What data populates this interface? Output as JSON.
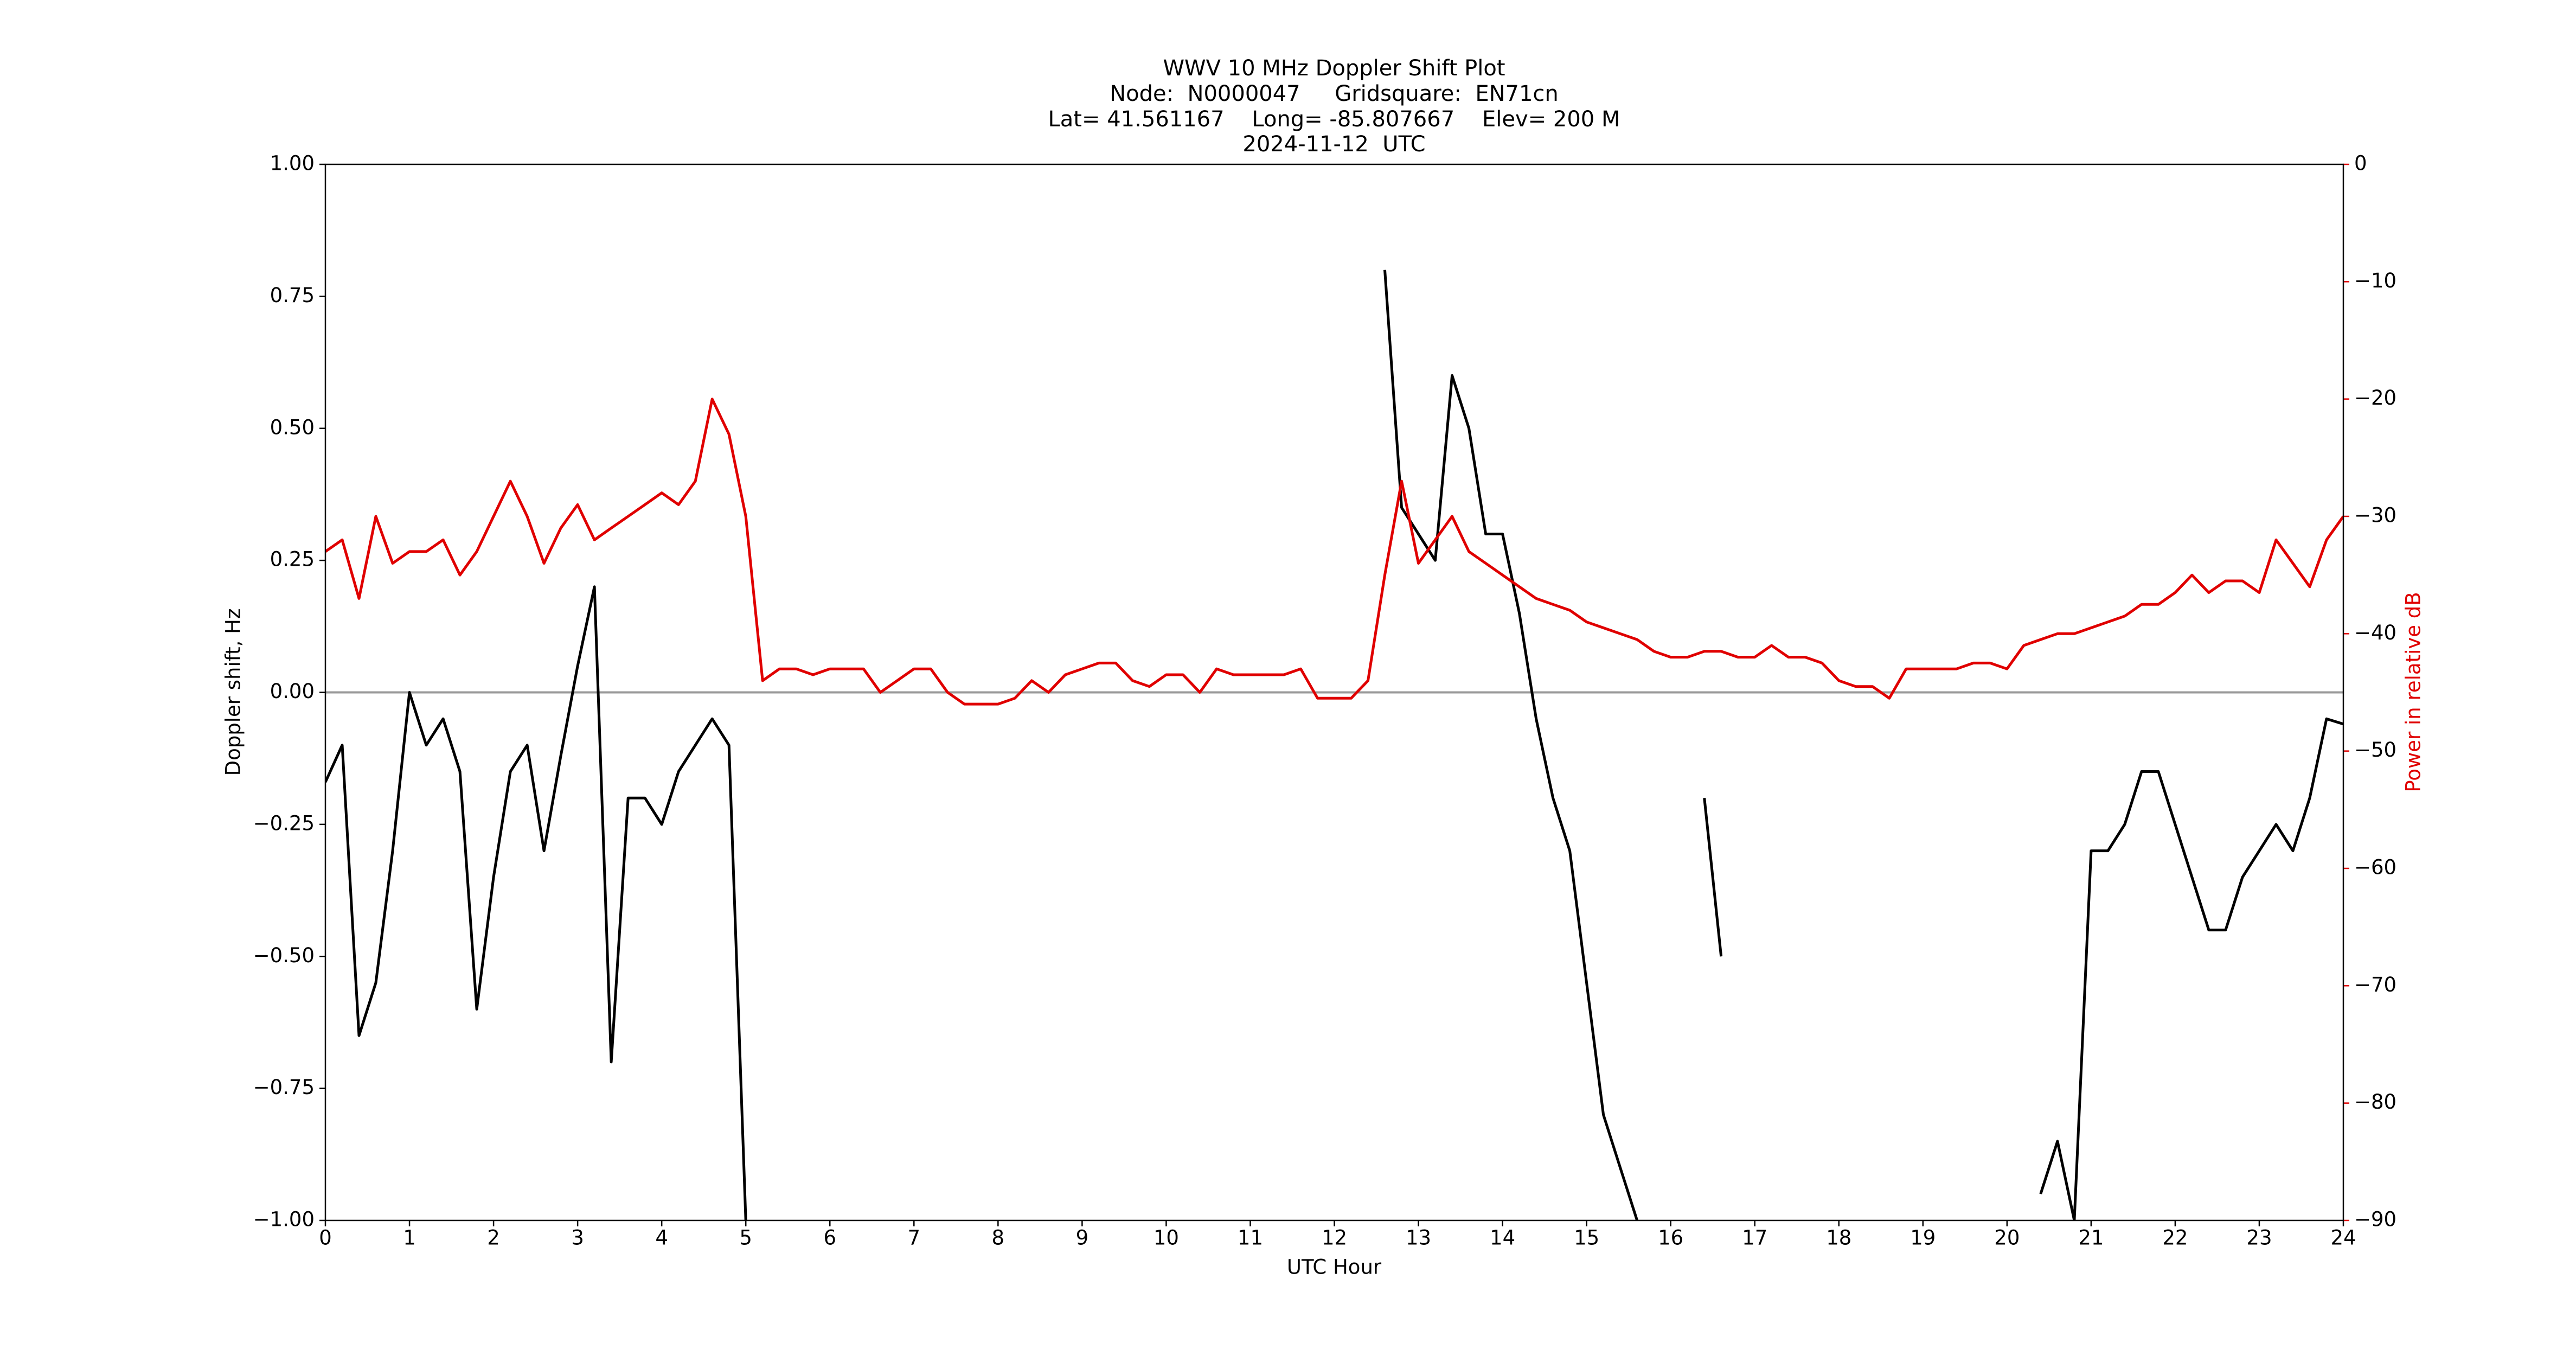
{
  "chart_data": {
    "type": "line",
    "title": [
      "WWV 10 MHz Doppler Shift Plot",
      "Node:  N0000047     Gridsquare:  EN71cn",
      "Lat= 41.561167    Long= -85.807667    Elev= 200 M",
      "2024-11-12  UTC"
    ],
    "x_label": "UTC Hour",
    "y_label": "Doppler shift, Hz",
    "y2_label": "Power in relative dB",
    "x": [
      0,
      0.2,
      0.4,
      0.6,
      0.8,
      1,
      1.2,
      1.4,
      1.6,
      1.8,
      2,
      2.2,
      2.4,
      2.6,
      2.8,
      3,
      3.2,
      3.4,
      3.6,
      3.8,
      4,
      4.2,
      4.4,
      4.6,
      4.8,
      5,
      5.2,
      5.4,
      5.6,
      5.8,
      6,
      6.2,
      6.4,
      6.6,
      6.8,
      7,
      7.2,
      7.4,
      7.6,
      7.8,
      8,
      8.2,
      8.4,
      8.6,
      8.8,
      9,
      9.2,
      9.4,
      9.6,
      9.8,
      10,
      10.2,
      10.4,
      10.6,
      10.8,
      11,
      11.2,
      11.4,
      11.6,
      11.8,
      12,
      12.2,
      12.4,
      12.6,
      12.8,
      13,
      13.2,
      13.4,
      13.6,
      13.8,
      14,
      14.2,
      14.4,
      14.6,
      14.8,
      15,
      15.2,
      15.4,
      15.6,
      15.8,
      16,
      16.2,
      16.4,
      16.6,
      16.8,
      17,
      17.2,
      17.4,
      17.6,
      17.8,
      18,
      18.2,
      18.4,
      18.6,
      18.8,
      19,
      19.2,
      19.4,
      19.6,
      19.8,
      20,
      20.2,
      20.4,
      20.6,
      20.8,
      21,
      21.2,
      21.4,
      21.6,
      21.8,
      22,
      22.2,
      22.4,
      22.6,
      22.8,
      23,
      23.2,
      23.4,
      23.6,
      23.8,
      24
    ],
    "series": [
      {
        "name": "Doppler shift",
        "color": "#000000",
        "axis": "y",
        "values": [
          -0.17,
          -0.1,
          -0.65,
          -0.55,
          -0.3,
          0.0,
          -0.1,
          -0.05,
          -0.15,
          -0.6,
          -0.35,
          -0.15,
          -0.1,
          -0.3,
          -0.12,
          0.05,
          0.2,
          -0.7,
          -0.2,
          -0.2,
          -0.25,
          -0.15,
          -0.1,
          -0.05,
          -0.1,
          -1.0,
          null,
          null,
          null,
          null,
          null,
          null,
          null,
          null,
          null,
          null,
          null,
          null,
          null,
          null,
          null,
          null,
          null,
          null,
          null,
          null,
          null,
          null,
          null,
          null,
          null,
          null,
          null,
          null,
          null,
          null,
          null,
          null,
          null,
          null,
          null,
          null,
          null,
          0.8,
          0.35,
          0.3,
          0.25,
          0.6,
          0.5,
          0.3,
          0.3,
          0.15,
          -0.05,
          -0.2,
          -0.3,
          -0.55,
          -0.8,
          -0.9,
          -1.0,
          null,
          null,
          null,
          -0.2,
          -0.5,
          null,
          null,
          null,
          null,
          null,
          null,
          null,
          null,
          null,
          null,
          null,
          null,
          null,
          null,
          null,
          null,
          null,
          null,
          -0.95,
          -0.85,
          -1.0,
          -0.3,
          -0.3,
          -0.25,
          -0.15,
          -0.15,
          -0.25,
          -0.35,
          -0.45,
          -0.45,
          -0.35,
          -0.3,
          -0.25,
          -0.3,
          -0.2,
          -0.05,
          -0.06
        ]
      },
      {
        "name": "Power",
        "color": "#e00000",
        "axis": "y2",
        "values": [
          -33,
          -32,
          -37,
          -30,
          -34,
          -33,
          -33,
          -32,
          -35,
          -33,
          -30,
          -27,
          -30,
          -34,
          -31,
          -29,
          -32,
          -31,
          -30,
          -29,
          -28,
          -29,
          -27,
          -20,
          -23,
          -30,
          -44,
          -43,
          -43,
          -43.5,
          -43,
          -43,
          -43,
          -45,
          -44,
          -43,
          -43,
          -45,
          -46,
          -46,
          -46,
          -45.5,
          -44,
          -45,
          -43.5,
          -43,
          -42.5,
          -42.5,
          -44,
          -44.5,
          -43.5,
          -43.5,
          -45,
          -43,
          -43.5,
          -43.5,
          -43.5,
          -43.5,
          -43,
          -45.5,
          -45.5,
          -45.5,
          -44,
          -35,
          -27,
          -34,
          -32,
          -30,
          -33,
          -34,
          -35,
          -36,
          -37,
          -37.5,
          -38,
          -39,
          -39.5,
          -40,
          -40.5,
          -41.5,
          -42,
          -42,
          -41.5,
          -41.5,
          -42,
          -42,
          -41,
          -42,
          -42,
          -42.5,
          -44,
          -44.5,
          -44.5,
          -45.5,
          -43,
          -43,
          -43,
          -43,
          -42.5,
          -42.5,
          -43,
          -41,
          -40.5,
          -40,
          -40,
          -39.5,
          -39,
          -38.5,
          -37.5,
          -37.5,
          -36.5,
          -35,
          -36.5,
          -35.5,
          -35.5,
          -36.5,
          -32,
          -34,
          -36,
          -32,
          -30
        ]
      }
    ],
    "xlim": [
      0,
      24
    ],
    "xticks": [
      0,
      1,
      2,
      3,
      4,
      5,
      6,
      7,
      8,
      9,
      10,
      11,
      12,
      13,
      14,
      15,
      16,
      17,
      18,
      19,
      20,
      21,
      22,
      23,
      24
    ],
    "ylim": [
      -1,
      1
    ],
    "yticks": [
      {
        "value": -1,
        "label": "−1.00"
      },
      {
        "value": -0.75,
        "label": "−0.75"
      },
      {
        "value": -0.5,
        "label": "−0.50"
      },
      {
        "value": -0.25,
        "label": "−0.25"
      },
      {
        "value": 0,
        "label": "0.00"
      },
      {
        "value": 0.25,
        "label": "0.25"
      },
      {
        "value": 0.5,
        "label": "0.50"
      },
      {
        "value": 0.75,
        "label": "0.75"
      },
      {
        "value": 1,
        "label": "1.00"
      }
    ],
    "y2lim": [
      -90,
      0
    ],
    "y2ticks": [
      {
        "value": -90,
        "label": "−90"
      },
      {
        "value": -80,
        "label": "−80"
      },
      {
        "value": -70,
        "label": "−70"
      },
      {
        "value": -60,
        "label": "−60"
      },
      {
        "value": -50,
        "label": "−50"
      },
      {
        "value": -40,
        "label": "−40"
      },
      {
        "value": -30,
        "label": "−30"
      },
      {
        "value": -20,
        "label": "−20"
      },
      {
        "value": -10,
        "label": "−10"
      },
      0
    ],
    "zero_line_color": "#999999",
    "y2_color": "#e00000"
  }
}
